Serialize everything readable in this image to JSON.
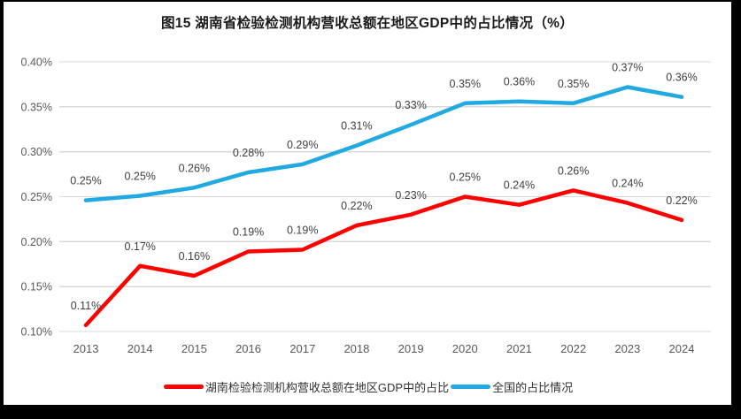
{
  "title": "图15 湖南省检验检测机构营收总额在地区GDP中的占比情况（%）",
  "colors": {
    "frame_border": "#000000",
    "background": "#FFFFFF",
    "gridline": "#D9D9D9",
    "axis_text": "#595959",
    "data_label_text": "#404040"
  },
  "chart_data": {
    "type": "line",
    "title": "图15 湖南省检验检测机构营收总额在地区GDP中的占比情况（%）",
    "xlabel": "",
    "ylabel": "",
    "units": "%",
    "grid": true,
    "legend_position": "bottom",
    "ylim": [
      0.1,
      0.4
    ],
    "ytick_step": 0.05,
    "categories": [
      "2013",
      "2014",
      "2015",
      "2016",
      "2017",
      "2018",
      "2019",
      "2020",
      "2021",
      "2022",
      "2023",
      "2024"
    ],
    "yticks": [
      {
        "value": 0.4,
        "label": "0.40%"
      },
      {
        "value": 0.35,
        "label": "0.35%"
      },
      {
        "value": 0.3,
        "label": "0.30%"
      },
      {
        "value": 0.25,
        "label": "0.25%"
      },
      {
        "value": 0.2,
        "label": "0.20%"
      },
      {
        "value": 0.15,
        "label": "0.15%"
      },
      {
        "value": 0.1,
        "label": "0.10%"
      }
    ],
    "series": [
      {
        "name": "湖南检验检测机构营收总额在地区GDP中的占比",
        "color": "#FE0000",
        "values": [
          0.11,
          0.17,
          0.16,
          0.19,
          0.19,
          0.22,
          0.23,
          0.25,
          0.24,
          0.26,
          0.24,
          0.22
        ],
        "labels": [
          "0.11%",
          "0.17%",
          "0.16%",
          "0.19%",
          "0.19%",
          "0.22%",
          "0.23%",
          "0.25%",
          "0.24%",
          "0.26%",
          "0.24%",
          "0.22%"
        ],
        "plot_values": [
          0.107,
          0.173,
          0.162,
          0.189,
          0.191,
          0.218,
          0.23,
          0.25,
          0.241,
          0.257,
          0.243,
          0.224
        ]
      },
      {
        "name": "全国的占比情况",
        "color": "#21A9E1",
        "values": [
          0.25,
          0.25,
          0.26,
          0.28,
          0.29,
          0.31,
          0.33,
          0.35,
          0.36,
          0.35,
          0.37,
          0.36
        ],
        "labels": [
          "0.25%",
          "0.25%",
          "0.26%",
          "0.28%",
          "0.29%",
          "0.31%",
          "0.33%",
          "0.35%",
          "0.36%",
          "0.35%",
          "0.37%",
          "0.36%"
        ],
        "plot_values": [
          0.246,
          0.251,
          0.26,
          0.277,
          0.286,
          0.307,
          0.33,
          0.354,
          0.356,
          0.354,
          0.372,
          0.361
        ]
      }
    ]
  }
}
